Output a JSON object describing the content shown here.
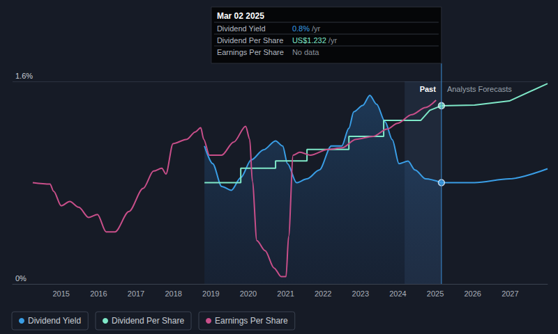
{
  "chart_data": {
    "type": "line",
    "xlim": [
      2013.7,
      2028.0
    ],
    "xticks": [
      2015,
      2016,
      2017,
      2018,
      2019,
      2020,
      2021,
      2022,
      2023,
      2024,
      2025,
      2026,
      2027
    ],
    "ylim": [
      0,
      1.6
    ],
    "yticks": [
      {
        "value": 0,
        "label": "0%"
      },
      {
        "value": 1.6,
        "label": "1.6%"
      }
    ],
    "y2lim": [
      0,
      1.4
    ],
    "grid": true,
    "legend": "bottom-left",
    "series": [
      {
        "name": "Dividend Yield",
        "color": "#3a9ee6",
        "type": "area",
        "x": [
          2018.83,
          2019.05,
          2019.29,
          2019.55,
          2019.8,
          2020.08,
          2020.41,
          2020.73,
          2020.92,
          2021.05,
          2021.29,
          2021.57,
          2021.9,
          2022.22,
          2022.5,
          2022.69,
          2022.82,
          2023.06,
          2023.25,
          2023.43,
          2023.66,
          2023.85,
          2024.03,
          2024.27,
          2024.46,
          2024.74,
          2025.164,
          2026.05,
          2026.98,
          2028.0
        ],
        "values": [
          1.09,
          0.95,
          0.77,
          0.74,
          0.84,
          0.98,
          1.06,
          1.13,
          1.09,
          0.95,
          0.8,
          0.83,
          0.9,
          1.09,
          1.09,
          1.23,
          1.36,
          1.41,
          1.49,
          1.42,
          1.28,
          1.14,
          0.95,
          0.97,
          0.9,
          0.83,
          0.8,
          0.8,
          0.83,
          0.91
        ]
      },
      {
        "name": "Dividend Per Share",
        "color": "#7fe8c8",
        "axis": "y2",
        "x": [
          2018.83,
          2019.8,
          2019.8,
          2020.73,
          2020.73,
          2021.57,
          2021.57,
          2022.69,
          2022.69,
          2023.62,
          2023.62,
          2024.61,
          2024.85,
          2025.164,
          2026.05,
          2026.98,
          2028.0
        ],
        "values": [
          0.7,
          0.7,
          0.8,
          0.8,
          0.85,
          0.85,
          0.93,
          0.93,
          1.02,
          1.02,
          1.13,
          1.13,
          1.2,
          1.232,
          1.236,
          1.265,
          1.385
        ]
      },
      {
        "name": "Earnings Per Share",
        "color": "#c94f8a",
        "axis": "y2",
        "x": [
          2014.24,
          2014.7,
          2014.8,
          2015.0,
          2015.23,
          2015.47,
          2015.73,
          2015.97,
          2016.2,
          2016.44,
          2016.81,
          2017.19,
          2017.47,
          2017.69,
          2017.8,
          2017.99,
          2018.36,
          2018.58,
          2018.73,
          2018.81,
          2018.96,
          2019.29,
          2019.61,
          2019.93,
          2020.04,
          2020.11,
          2020.23,
          2020.45,
          2020.69,
          2020.88,
          2021.01,
          2021.08,
          2021.2,
          2021.38,
          2021.66,
          2022.13,
          2022.5,
          2022.88,
          2023.34,
          2023.71,
          2023.99,
          2024.37,
          2024.74,
          2025.02
        ],
        "values": [
          0.7,
          0.69,
          0.64,
          0.54,
          0.57,
          0.53,
          0.46,
          0.48,
          0.36,
          0.36,
          0.5,
          0.66,
          0.78,
          0.8,
          0.76,
          0.97,
          1.0,
          1.05,
          1.08,
          1.0,
          0.89,
          0.89,
          0.98,
          1.09,
          1.0,
          0.71,
          0.3,
          0.23,
          0.11,
          0.05,
          0.05,
          0.33,
          0.89,
          0.91,
          0.89,
          0.93,
          0.94,
          1.0,
          1.02,
          1.07,
          1.11,
          1.17,
          1.22,
          1.27
        ]
      }
    ],
    "tooltip": {
      "date": "Mar 02 2025",
      "x": 2025.164,
      "rows": [
        {
          "label": "Dividend Yield",
          "value": 0.8,
          "value_label": "0.8%",
          "unit": "/yr"
        },
        {
          "label": "Dividend Per Share",
          "value": 1.232,
          "value_label": "US$1.232",
          "unit": "/yr"
        },
        {
          "label": "Earnings Per Share",
          "value_label": "No data"
        }
      ]
    },
    "annotations": [
      {
        "text": "Past",
        "x_range": [
          2024.18,
          2025.164
        ]
      },
      {
        "text": "Analysts Forecasts"
      }
    ]
  }
}
